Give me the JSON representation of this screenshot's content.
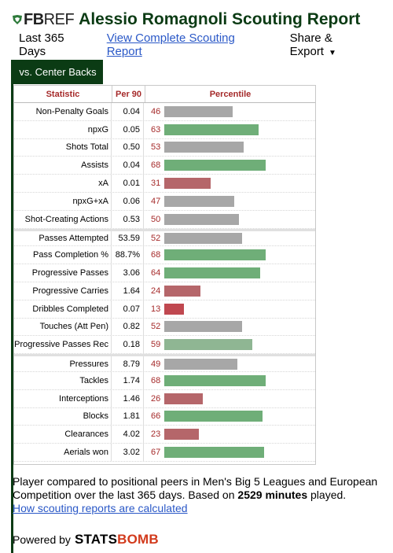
{
  "colors": {
    "brand_green": "#0b3b14",
    "link_blue": "#2a58c7",
    "header_red": "#a52a2a",
    "bar_green": "#6fae78",
    "bar_gray": "#a7a7a7",
    "bar_red": "#b5666a",
    "bomb_red": "#d23a1c"
  },
  "header": {
    "logo_text_bold": "FB",
    "logo_text_light": "REF",
    "logo_icon": "fbref-flag-icon",
    "title": "Alessio Romagnoli Scouting Report"
  },
  "subnav": {
    "period": "Last 365 Days",
    "complete_link": "View Complete Scouting Report",
    "share": "Share & Export",
    "share_icon": "caret-down-icon"
  },
  "tab": {
    "label": "vs. Center Backs"
  },
  "table": {
    "headers": {
      "statistic": "Statistic",
      "per90": "Per 90",
      "percentile": "Percentile"
    },
    "rows": [
      {
        "stat": "Non-Penalty Goals",
        "per90": "0.04",
        "pct": 46,
        "tone": "gray",
        "sep": false
      },
      {
        "stat": "npxG",
        "per90": "0.05",
        "pct": 63,
        "tone": "green",
        "sep": false
      },
      {
        "stat": "Shots Total",
        "per90": "0.50",
        "pct": 53,
        "tone": "gray",
        "sep": false
      },
      {
        "stat": "Assists",
        "per90": "0.04",
        "pct": 68,
        "tone": "green",
        "sep": false
      },
      {
        "stat": "xA",
        "per90": "0.01",
        "pct": 31,
        "tone": "red",
        "sep": false
      },
      {
        "stat": "npxG+xA",
        "per90": "0.06",
        "pct": 47,
        "tone": "gray",
        "sep": false
      },
      {
        "stat": "Shot-Creating Actions",
        "per90": "0.53",
        "pct": 50,
        "tone": "gray",
        "sep": false
      },
      {
        "stat": "Passes Attempted",
        "per90": "53.59",
        "pct": 52,
        "tone": "gray",
        "sep": true
      },
      {
        "stat": "Pass Completion %",
        "per90": "88.7%",
        "pct": 68,
        "tone": "green",
        "sep": false
      },
      {
        "stat": "Progressive Passes",
        "per90": "3.06",
        "pct": 64,
        "tone": "green",
        "sep": false
      },
      {
        "stat": "Progressive Carries",
        "per90": "1.64",
        "pct": 24,
        "tone": "red",
        "sep": false
      },
      {
        "stat": "Dribbles Completed",
        "per90": "0.07",
        "pct": 13,
        "tone": "darkred",
        "sep": false
      },
      {
        "stat": "Touches (Att Pen)",
        "per90": "0.82",
        "pct": 52,
        "tone": "gray",
        "sep": false
      },
      {
        "stat": "Progressive Passes Rec",
        "per90": "0.18",
        "pct": 59,
        "tone": "lightgreen",
        "sep": false
      },
      {
        "stat": "Pressures",
        "per90": "8.79",
        "pct": 49,
        "tone": "gray",
        "sep": true
      },
      {
        "stat": "Tackles",
        "per90": "1.74",
        "pct": 68,
        "tone": "green",
        "sep": false
      },
      {
        "stat": "Interceptions",
        "per90": "1.46",
        "pct": 26,
        "tone": "red",
        "sep": false
      },
      {
        "stat": "Blocks",
        "per90": "1.81",
        "pct": 66,
        "tone": "green",
        "sep": false
      },
      {
        "stat": "Clearances",
        "per90": "4.02",
        "pct": 23,
        "tone": "red",
        "sep": false
      },
      {
        "stat": "Aerials won",
        "per90": "3.02",
        "pct": 67,
        "tone": "green",
        "sep": false
      }
    ]
  },
  "caption": {
    "text_before": "Player compared to positional peers in Men's Big 5 Leagues and European Competition over the last 365 days. Based on ",
    "minutes": "2529 minutes",
    "text_after": " played.",
    "link": "How scouting reports are calculated"
  },
  "footer": {
    "powered_by": "Powered by",
    "brand_part1": "STATS",
    "brand_part2": "BOMB"
  }
}
